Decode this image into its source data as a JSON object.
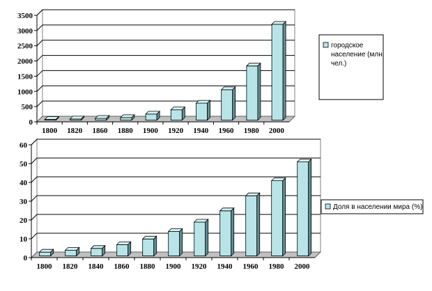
{
  "chart_data": [
    {
      "type": "bar",
      "title": "",
      "xlabel": "",
      "ylabel": "",
      "categories": [
        "1800",
        "1820",
        "1860",
        "1880",
        "1900",
        "1920",
        "1940",
        "1960",
        "1980",
        "2000"
      ],
      "series": [
        {
          "name": "городское население (млн. чел.)",
          "values": [
            25,
            40,
            60,
            85,
            200,
            340,
            560,
            1000,
            1780,
            3150
          ]
        }
      ],
      "ylim": [
        0,
        3500
      ],
      "yticks": [
        "0",
        "500",
        "1000",
        "1500",
        "2000",
        "2500",
        "3000",
        "3500"
      ],
      "legend_lines": [
        "городское",
        "население (млн.",
        "чел.)"
      ],
      "legend_position": "right",
      "bar_color": "#b8e4e8",
      "grid": true
    },
    {
      "type": "bar",
      "title": "",
      "xlabel": "",
      "ylabel": "",
      "categories": [
        "1800",
        "1820",
        "1840",
        "1860",
        "1880",
        "1900",
        "1920",
        "1940",
        "1960",
        "1980",
        "2000"
      ],
      "series": [
        {
          "name": "Доля в населении мира (%)",
          "values": [
            2,
            3,
            4,
            6,
            9,
            13,
            18,
            24,
            32,
            40,
            50
          ]
        }
      ],
      "ylim": [
        0,
        60
      ],
      "yticks": [
        "0",
        "10",
        "20",
        "30",
        "40",
        "50",
        "60"
      ],
      "legend_lines": [
        "Доля в населении мира (%)"
      ],
      "legend_position": "right",
      "bar_color": "#b8e4e8",
      "grid": true
    }
  ]
}
